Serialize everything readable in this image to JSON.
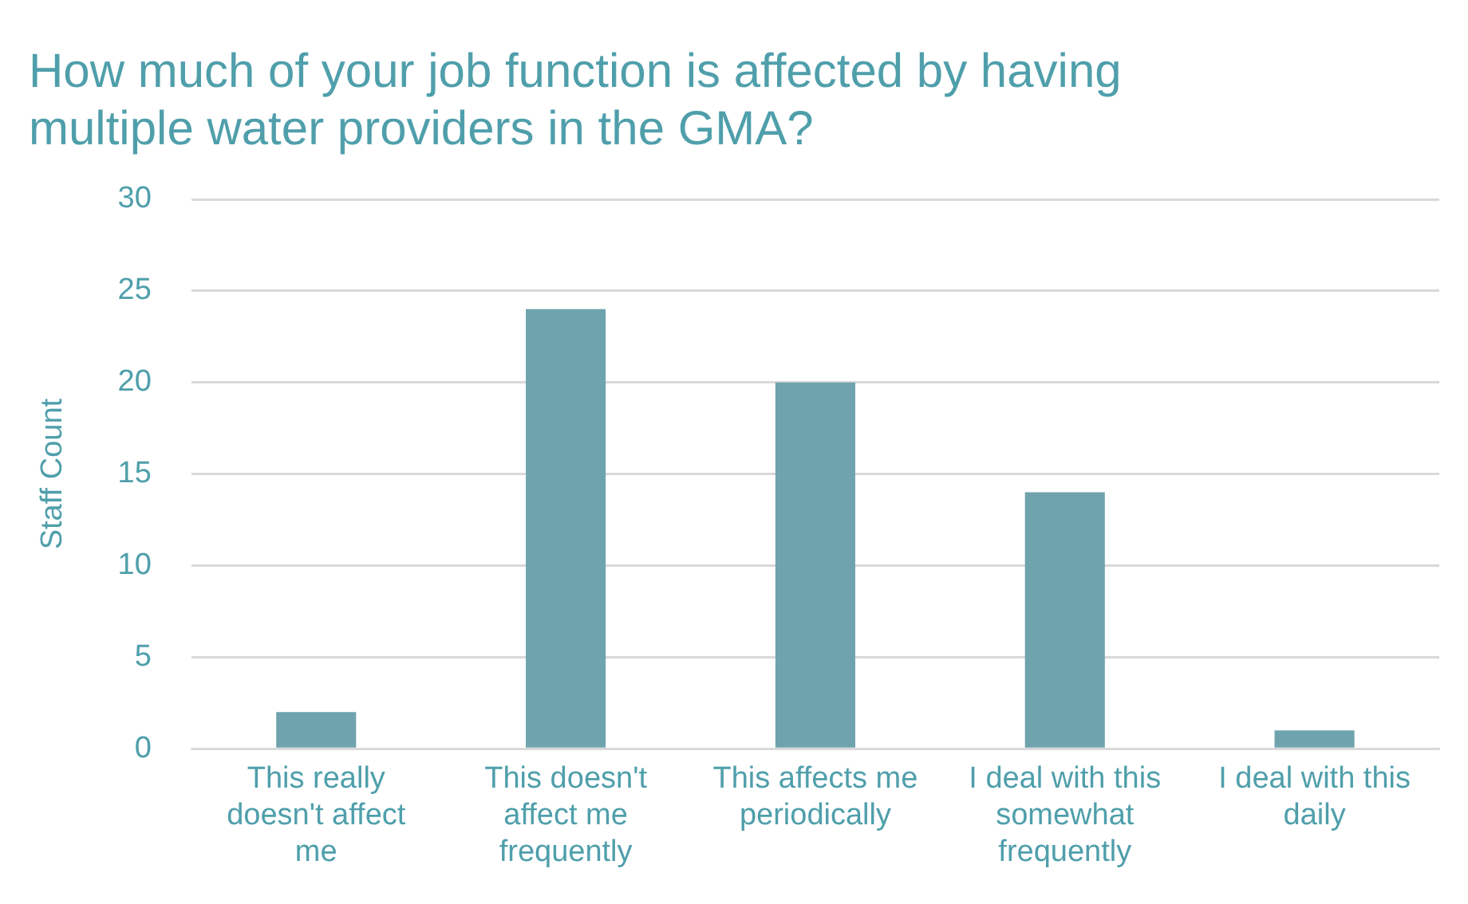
{
  "chart_data": {
    "type": "bar",
    "title": "How much of your job function is affected by having multiple water providers in the GMA?",
    "ylabel": "Staff Count",
    "categories": [
      "This really doesn't affect me",
      "This doesn't affect me frequently",
      "This affects me periodically",
      "I deal with this somewhat frequently",
      "I deal with this daily"
    ],
    "values": [
      2,
      24,
      20,
      14,
      1
    ],
    "color": "#6fa3ae",
    "ylim": [
      0,
      30
    ],
    "yticks": [
      0,
      5,
      10,
      15,
      20,
      25,
      30
    ],
    "grid": "y",
    "legend": false
  }
}
